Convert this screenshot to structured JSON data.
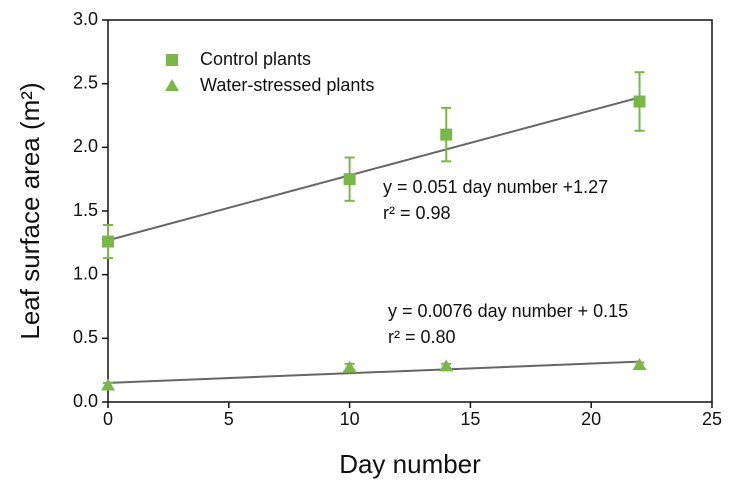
{
  "chart_data": {
    "type": "scatter",
    "xlabel": "Day number",
    "ylabel": "Leaf surface area (m²)",
    "xlim": [
      0,
      25
    ],
    "xticks": [
      0,
      5,
      10,
      15,
      20,
      25
    ],
    "ylim": [
      0,
      3
    ],
    "yticks": [
      {
        "value": 0,
        "label": "0.0"
      },
      0.5,
      {
        "value": 1,
        "label": "1.0"
      },
      1.5,
      {
        "value": 2,
        "label": "2.0"
      },
      2.5,
      {
        "value": 3,
        "label": "3.0"
      }
    ],
    "x": [
      0,
      10,
      14,
      22
    ],
    "series": [
      {
        "name": "Control plants",
        "color": "#7ab648",
        "marker": "square",
        "values": [
          1.26,
          1.75,
          2.1,
          2.36
        ],
        "errors": [
          0.13,
          0.17,
          0.21,
          0.23
        ]
      },
      {
        "name": "Water-stressed plants",
        "color": "#7ab648",
        "marker": "triangle",
        "values": [
          0.13,
          0.27,
          0.28,
          0.29
        ],
        "errors": [
          0.02,
          0.03,
          0.02,
          0.02
        ]
      }
    ],
    "fits": [
      {
        "equation": "y = 0.051 day number +1.27",
        "r2": "r² = 0.98",
        "slope": 0.051,
        "intercept": 1.27,
        "x_range": [
          0,
          22
        ],
        "color": "#666666"
      },
      {
        "equation": "y = 0.0076 day number + 0.15",
        "r2": "r² = 0.80",
        "slope": 0.0076,
        "intercept": 0.15,
        "x_range": [
          0,
          22
        ],
        "color": "#666666"
      }
    ],
    "legend": "upper-left"
  }
}
